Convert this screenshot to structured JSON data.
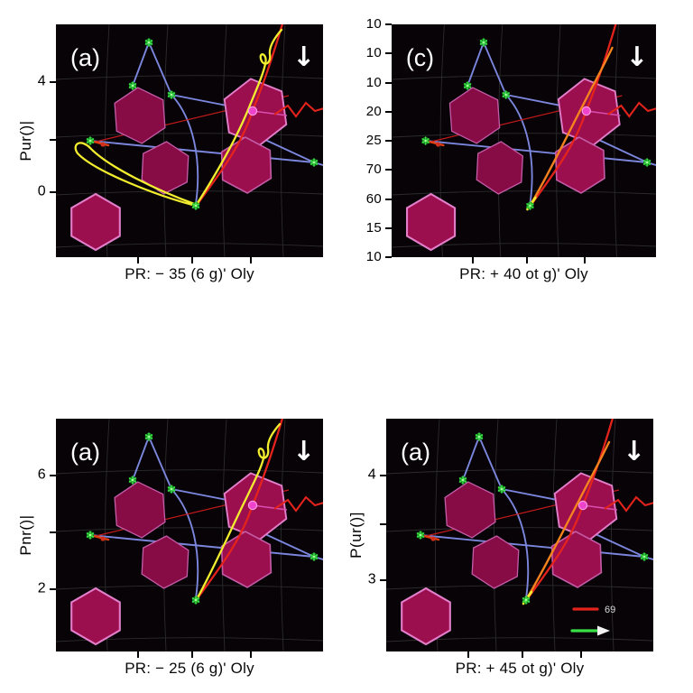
{
  "figure": {
    "panels": [
      {
        "label": "(a)",
        "arrow": "↓",
        "ylabel": "Pur()|",
        "yticks": [
          "4",
          "",
          "0"
        ],
        "caption": "PR: − 35 (6 g)' Oly",
        "variant": "yellow-loop",
        "legend": null
      },
      {
        "label": "(c)",
        "arrow": "↓",
        "ylabel": "",
        "yticks": [
          "10",
          "10",
          "10",
          "20",
          "25",
          "70",
          "60",
          "15",
          "10"
        ],
        "caption": "PR: + 40 ot g)' Oly",
        "variant": "orange",
        "legend": null
      },
      {
        "label": "(a)",
        "arrow": "↓",
        "ylabel": "Pnr()|",
        "yticks": [
          "6",
          "",
          "2"
        ],
        "caption": "PR: − 25 (6 g)' Oly",
        "variant": "yellow-diag",
        "legend": null
      },
      {
        "label": "(a)",
        "arrow": "↓",
        "ylabel": "P(ur()]",
        "yticks": [
          "4",
          "",
          "3"
        ],
        "caption": "PR: + 45 ot g)' Oly",
        "variant": "orange",
        "legend": {
          "entries": [
            {
              "marker": "red-line",
              "label": "69"
            },
            {
              "marker": "green-arrow",
              "label": ""
            }
          ]
        }
      }
    ],
    "colors": {
      "page_bg": "#ffffff",
      "plot_bg": "#070307",
      "grid_line": "#2c2c2c",
      "hexagon_fill": "#9c0f4e",
      "hexagon_fill_dim": "#870c46",
      "hexagon_stroke": "#c45da8",
      "hexagon_stroke_bright": "#e27fca",
      "blue_line": "#7b86dc",
      "red_line": "#e3231c",
      "thin_red_line": "#c21a1a",
      "yellow_line": "#f2ed2e",
      "orange_line": "#f5821e",
      "green_marker": "#3ae146",
      "green_marker_dark": "#128a1c",
      "magenta_dot": "#ee44cc",
      "text_white": "#ffffff",
      "legend_text": "#d8d8d8"
    }
  },
  "chart_data": {
    "type": "scatter",
    "layout": "2x2 grid of identical dark-background panels; each shows hexagonal obstacles, green star nodes linked by blue segments, a red trajectory entering from top-right, and a highlighted (yellow or orange) trajectory; white down-arrow annotation in each panel top-right corner",
    "panels": [
      {
        "panel_label": "(a)",
        "position": "top-left",
        "caption": "PR: − 35 (6 g)' Oly",
        "ylabel": "Pur()|",
        "ytick_labels": [
          "4",
          "0"
        ],
        "n_y_ticks": 3,
        "n_x_ticks": 3,
        "highlight_curve": "yellow loop through left node plus ascent to top-right",
        "legend": null
      },
      {
        "panel_label": "(c)",
        "position": "top-right",
        "caption": "PR: + 40 ot g)' Oly",
        "ylabel": null,
        "ytick_labels": [
          "10",
          "10",
          "10",
          "20",
          "25",
          "70",
          "60",
          "15",
          "10"
        ],
        "n_y_ticks": 9,
        "n_x_ticks": 3,
        "highlight_curve": "orange trajectory from bottom-center node to top-right",
        "legend": null
      },
      {
        "panel_label": "(a)",
        "position": "bottom-left",
        "caption": "PR: − 25 (6 g)' Oly",
        "ylabel": "Pnr()|",
        "ytick_labels": [
          "6",
          "2"
        ],
        "n_y_ticks": 3,
        "n_x_ticks": 3,
        "highlight_curve": "yellow diagonal trajectory from top-right loop down to bottom-center node",
        "legend": null
      },
      {
        "panel_label": "(a)",
        "position": "bottom-right",
        "caption": "PR: + 45 ot g)' Oly",
        "ylabel": "P(ur()]",
        "ytick_labels": [
          "4",
          "3"
        ],
        "n_y_ticks": 3,
        "n_x_ticks": 3,
        "highlight_curve": "orange trajectory from bottom-center node to top-right",
        "legend": [
          {
            "label": "69",
            "marker": "red line"
          },
          {
            "label": "",
            "marker": "green arrow"
          }
        ]
      }
    ],
    "common_scene": {
      "green_star_nodes_frac": [
        [
          0.348,
          0.078
        ],
        [
          0.287,
          0.264
        ],
        [
          0.432,
          0.302
        ],
        [
          0.128,
          0.5
        ],
        [
          0.966,
          0.593
        ],
        [
          0.524,
          0.779
        ]
      ],
      "magenta_node_frac": [
        0.736,
        0.372
      ],
      "hexagons_frac": [
        {
          "center": [
            0.314,
            0.391
          ],
          "r": 0.105
        },
        {
          "center": [
            0.409,
            0.616
          ],
          "r": 0.098
        },
        {
          "center": [
            0.747,
            0.376
          ],
          "r": 0.125
        },
        {
          "center": [
            0.713,
            0.605
          ],
          "r": 0.105
        },
        {
          "center": [
            0.149,
            0.849
          ],
          "r": 0.105
        }
      ],
      "connections": "blue segments link the green nodes (top node to two mid nodes, long shallow line from left node to right-edge node, curved drop to bottom-center node); thin red diagonal from left node toward right hexagon cluster; main red trajectory descends from top edge through the cluster to the bottom-center node; red zigzag exits the right edge at mid-height"
    }
  }
}
